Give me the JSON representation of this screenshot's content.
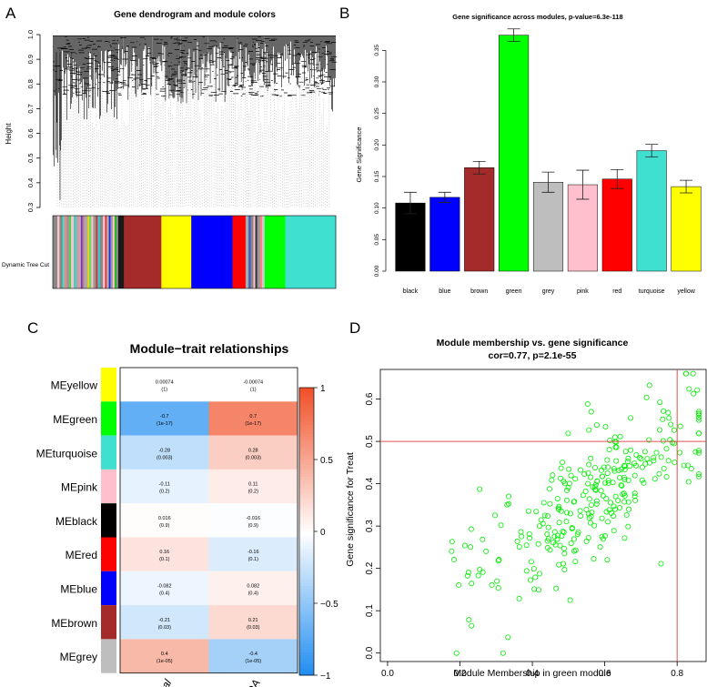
{
  "panels": {
    "A": "A",
    "B": "B",
    "C": "C",
    "D": "D"
  },
  "chart_data": [
    {
      "type": "dendrogram",
      "panel": "A",
      "title": "Gene dendrogram and module colors",
      "ylabel": "Height",
      "ylim": [
        0.3,
        1.0
      ],
      "yticks": [
        "0.3",
        "0.4",
        "0.5",
        "0.6",
        "0.7",
        "0.8",
        "0.9",
        "1.0"
      ],
      "color_bar_label": "Dynamic Tree Cut",
      "module_bar": [
        {
          "color": "#888888",
          "w": 1.2
        },
        {
          "color": "#ffc0cb",
          "w": 0.6
        },
        {
          "color": "#888888",
          "w": 0.8
        },
        {
          "color": "#2ee8d0",
          "w": 0.5
        },
        {
          "color": "#ff8080",
          "w": 0.6
        },
        {
          "color": "#999999",
          "w": 0.7
        },
        {
          "color": "#50d050",
          "w": 0.5
        },
        {
          "color": "#ffc0cb",
          "w": 0.7
        },
        {
          "color": "#40d0c0",
          "w": 0.6
        },
        {
          "color": "#aaaaaa",
          "w": 0.8
        },
        {
          "color": "#ff9090",
          "w": 0.5
        },
        {
          "color": "#4040ff",
          "w": 0.4
        },
        {
          "color": "#cc7777",
          "w": 0.5
        },
        {
          "color": "#aaaaaa",
          "w": 0.9
        },
        {
          "color": "#ffcc00",
          "w": 0.4
        },
        {
          "color": "#66dd66",
          "w": 0.6
        },
        {
          "color": "#ffc0cb",
          "w": 0.5
        },
        {
          "color": "#999999",
          "w": 0.7
        },
        {
          "color": "#dd3333",
          "w": 0.5
        },
        {
          "color": "#33cccc",
          "w": 0.6
        },
        {
          "color": "#888888",
          "w": 0.8
        },
        {
          "color": "#ffc0cb",
          "w": 0.6
        },
        {
          "color": "#ff0000",
          "w": 0.3
        },
        {
          "color": "#aaaaaa",
          "w": 0.7
        },
        {
          "color": "#2222ff",
          "w": 0.4
        },
        {
          "color": "#999999",
          "w": 0.6
        },
        {
          "color": "#ffc0cb",
          "w": 0.5
        },
        {
          "color": "#00cc00",
          "w": 0.4
        },
        {
          "color": "#888888",
          "w": 0.6
        },
        {
          "color": "#1a1a1a",
          "w": 1.5
        },
        {
          "color": "#a52a2a",
          "w": 10
        },
        {
          "color": "#ffff00",
          "w": 8
        },
        {
          "color": "#0000ff",
          "w": 11
        },
        {
          "color": "#ff0000",
          "w": 3.5
        },
        {
          "color": "#aaaaaa",
          "w": 0.8
        },
        {
          "color": "#4060c0",
          "w": 0.6
        },
        {
          "color": "#888888",
          "w": 0.7
        },
        {
          "color": "#ffc0cb",
          "w": 0.5
        },
        {
          "color": "#333333",
          "w": 0.5
        },
        {
          "color": "#999999",
          "w": 0.8
        },
        {
          "color": "#ff8080",
          "w": 0.5
        },
        {
          "color": "#cccccc",
          "w": 0.7
        },
        {
          "color": "#00ff00",
          "w": 5.5
        },
        {
          "color": "#40e0d0",
          "w": 13.5
        }
      ]
    },
    {
      "type": "bar",
      "panel": "B",
      "title": "Gene significance across modules, p-value=6.3e-118",
      "ylabel": "Gene Significance",
      "ylim": [
        0,
        0.375
      ],
      "yticks": [
        0,
        0.05,
        0.1,
        0.15,
        0.2,
        0.25,
        0.3,
        0.35
      ],
      "ytick_labels": [
        "0.00",
        "0.05",
        "0.10",
        "0.15",
        "0.20",
        "0.25",
        "0.30",
        "0.35"
      ],
      "categories": [
        "black",
        "blue",
        "brown",
        "green",
        "grey",
        "pink",
        "red",
        "turquoise",
        "yellow"
      ],
      "values": [
        0.108,
        0.117,
        0.164,
        0.374,
        0.141,
        0.137,
        0.146,
        0.191,
        0.134
      ],
      "errors": [
        0.017,
        0.008,
        0.01,
        0.01,
        0.016,
        0.023,
        0.015,
        0.01,
        0.01
      ],
      "colors": [
        "#000000",
        "#0000ff",
        "#a52a2a",
        "#00ff00",
        "#bebebe",
        "#ffc0cb",
        "#ff0000",
        "#40e0d0",
        "#ffff00"
      ]
    },
    {
      "type": "heatmap",
      "panel": "C",
      "title": "Module−trait relationships",
      "rows": [
        "MEyellow",
        "MEgreen",
        "MEturquoise",
        "MEpink",
        "MEblack",
        "MEred",
        "MEblue",
        "MEbrown",
        "MEgrey"
      ],
      "row_colors": [
        "#ffff00",
        "#00ff00",
        "#40e0d0",
        "#ffc0cb",
        "#000000",
        "#ff0000",
        "#0000ff",
        "#a52a2a",
        "#bebebe"
      ],
      "columns": [
        "normal",
        "OA"
      ],
      "values": [
        [
          0.00074,
          -0.00074
        ],
        [
          -0.7,
          0.7
        ],
        [
          -0.28,
          0.28
        ],
        [
          -0.11,
          0.11
        ],
        [
          0.016,
          -0.016
        ],
        [
          0.16,
          -0.16
        ],
        [
          -0.082,
          0.082
        ],
        [
          -0.21,
          0.21
        ],
        [
          0.4,
          -0.4
        ]
      ],
      "cell_text": [
        [
          "0.00074",
          "-0.00074"
        ],
        [
          "-0.7",
          "0.7"
        ],
        [
          "-0.28",
          "0.28"
        ],
        [
          "-0.11",
          "0.11"
        ],
        [
          "0.016",
          "-0.016"
        ],
        [
          "0.16",
          "-0.16"
        ],
        [
          "-0.082",
          "0.082"
        ],
        [
          "-0.21",
          "0.21"
        ],
        [
          "0.4",
          "-0.4"
        ]
      ],
      "cell_pvalue": [
        [
          "(1)",
          "(1)"
        ],
        [
          "(1e-17)",
          "(1e-17)"
        ],
        [
          "(0.003)",
          "(0.003)"
        ],
        [
          "(0.2)",
          "(0.2)"
        ],
        [
          "(0.9)",
          "(0.9)"
        ],
        [
          "(0.1)",
          "(0.1)"
        ],
        [
          "(0.4)",
          "(0.4)"
        ],
        [
          "(0.03)",
          "(0.03)"
        ],
        [
          "(1e-05)",
          "(1e-05)"
        ]
      ],
      "scale_ticks": [
        "1",
        "0.5",
        "0",
        "−0.5",
        "−1"
      ],
      "scale_values": [
        1,
        0.5,
        0,
        -0.5,
        -1
      ]
    },
    {
      "type": "scatter",
      "panel": "D",
      "title": "Module membership vs. gene significance",
      "subtitle": "cor=0.77, p=2.1e-55",
      "xlabel": "Module Membership in green module",
      "ylabel": "Gene significance for Treat",
      "xlim": [
        -0.02,
        0.88
      ],
      "ylim": [
        -0.02,
        0.67
      ],
      "xticks": [
        0,
        0.2,
        0.4,
        0.6,
        0.8
      ],
      "xtick_labels": [
        "0.0",
        "0.2",
        "0.4",
        "0.6",
        "0.8"
      ],
      "yticks": [
        0,
        0.1,
        0.2,
        0.3,
        0.4,
        0.5,
        0.6
      ],
      "ytick_labels": [
        "0.0",
        "0.1",
        "0.2",
        "0.3",
        "0.4",
        "0.5",
        "0.6"
      ],
      "hline": 0.5,
      "vline": 0.8,
      "point_color": "#00ee00",
      "n_points": 290,
      "seed": 7
    }
  ]
}
